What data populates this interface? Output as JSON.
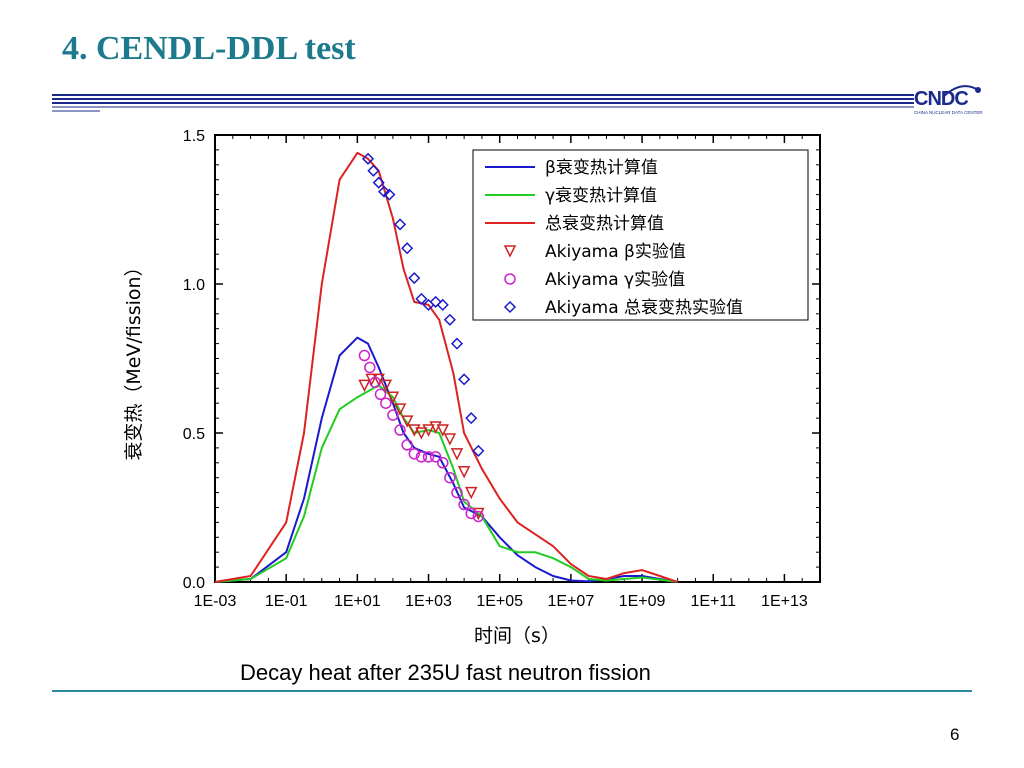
{
  "slide": {
    "title": "4. CENDL-DDL test",
    "caption": "Decay heat after 235U fast neutron fission",
    "page_number": "6",
    "logo_text": "CNDC",
    "logo_subtext": "CHINA NUCLEAR DATA CENTER",
    "accent_color": "#1d7a8c"
  },
  "chart_data": {
    "type": "line",
    "title": "",
    "xlabel": "时间（s）",
    "ylabel": "衰变热（MeV/fission）",
    "x_scale": "log10",
    "xlim_log10": [
      -3,
      14
    ],
    "ylim": [
      0,
      1.5
    ],
    "x_tick_labels": [
      "1E-03",
      "1E-01",
      "1E+01",
      "1E+03",
      "1E+05",
      "1E+07",
      "1E+09",
      "1E+11",
      "1E+13"
    ],
    "y_tick_labels": [
      "0.0",
      "0.5",
      "1.0",
      "1.5"
    ],
    "legend_position": "top-right",
    "series": [
      {
        "name": "β衰变热计算值",
        "kind": "line",
        "color": "#1a1acc",
        "x_log10": [
          -3,
          -2,
          -1,
          -0.5,
          0,
          0.5,
          1,
          1.3,
          1.6,
          2,
          2.3,
          2.6,
          3,
          3.3,
          3.7,
          4,
          4.5,
          5,
          5.5,
          6,
          6.5,
          7,
          7.5,
          8,
          8.5,
          9,
          9.5,
          10
        ],
        "y": [
          0,
          0.01,
          0.1,
          0.28,
          0.55,
          0.76,
          0.82,
          0.8,
          0.72,
          0.6,
          0.5,
          0.45,
          0.43,
          0.42,
          0.33,
          0.25,
          0.22,
          0.15,
          0.09,
          0.05,
          0.02,
          0.005,
          0.002,
          0.01,
          0.02,
          0.02,
          0.01,
          0
        ]
      },
      {
        "name": "γ衰变热计算值",
        "kind": "line",
        "color": "#22cc22",
        "x_log10": [
          -3,
          -2,
          -1,
          -0.5,
          0,
          0.5,
          1,
          1.3,
          1.6,
          2,
          2.3,
          2.6,
          3,
          3.3,
          3.7,
          4,
          4.5,
          5,
          5.5,
          6,
          6.5,
          7,
          7.5,
          8,
          8.5,
          9,
          9.5,
          10
        ],
        "y": [
          0,
          0.01,
          0.08,
          0.22,
          0.45,
          0.58,
          0.62,
          0.64,
          0.66,
          0.62,
          0.55,
          0.5,
          0.51,
          0.5,
          0.38,
          0.27,
          0.22,
          0.12,
          0.1,
          0.1,
          0.08,
          0.05,
          0.01,
          0.005,
          0.01,
          0.015,
          0.008,
          0
        ]
      },
      {
        "name": "总衰变热计算值",
        "kind": "line",
        "color": "#dd2222",
        "x_log10": [
          -3,
          -2,
          -1,
          -0.5,
          0,
          0.5,
          1,
          1.3,
          1.6,
          2,
          2.3,
          2.6,
          3,
          3.3,
          3.7,
          4,
          4.5,
          5,
          5.5,
          6,
          6.5,
          7,
          7.5,
          8,
          8.5,
          9,
          9.5,
          10
        ],
        "y": [
          0,
          0.02,
          0.2,
          0.5,
          1.0,
          1.35,
          1.44,
          1.42,
          1.38,
          1.22,
          1.05,
          0.94,
          0.93,
          0.88,
          0.7,
          0.5,
          0.38,
          0.28,
          0.2,
          0.16,
          0.12,
          0.06,
          0.02,
          0.01,
          0.03,
          0.04,
          0.02,
          0
        ]
      },
      {
        "name": "Akiyama β实验值",
        "kind": "marker",
        "marker": "triangle-down",
        "color": "#cc2222",
        "x_log10": [
          1.2,
          1.4,
          1.6,
          1.8,
          2.0,
          2.2,
          2.4,
          2.6,
          2.8,
          3.0,
          3.2,
          3.4,
          3.6,
          3.8,
          4.0,
          4.2,
          4.4
        ],
        "y": [
          0.66,
          0.68,
          0.68,
          0.66,
          0.62,
          0.58,
          0.54,
          0.51,
          0.5,
          0.51,
          0.52,
          0.51,
          0.48,
          0.43,
          0.37,
          0.3,
          0.23
        ]
      },
      {
        "name": "Akiyama γ实验值",
        "kind": "marker",
        "marker": "circle",
        "color": "#cc22cc",
        "x_log10": [
          1.2,
          1.35,
          1.5,
          1.65,
          1.8,
          2.0,
          2.2,
          2.4,
          2.6,
          2.8,
          3.0,
          3.2,
          3.4,
          3.6,
          3.8,
          4.0,
          4.2,
          4.4
        ],
        "y": [
          0.76,
          0.72,
          0.67,
          0.63,
          0.6,
          0.56,
          0.51,
          0.46,
          0.43,
          0.42,
          0.42,
          0.42,
          0.4,
          0.35,
          0.3,
          0.26,
          0.23,
          0.22
        ]
      },
      {
        "name": "Akiyama 总衰变热实验值",
        "kind": "marker",
        "marker": "diamond",
        "color": "#1a1acc",
        "x_log10": [
          1.3,
          1.45,
          1.6,
          1.75,
          1.9,
          2.2,
          2.4,
          2.6,
          2.8,
          3.0,
          3.2,
          3.4,
          3.6,
          3.8,
          4.0,
          4.2,
          4.4
        ],
        "y": [
          1.42,
          1.38,
          1.34,
          1.31,
          1.3,
          1.2,
          1.12,
          1.02,
          0.95,
          0.93,
          0.94,
          0.93,
          0.88,
          0.8,
          0.68,
          0.55,
          0.44
        ]
      }
    ]
  }
}
